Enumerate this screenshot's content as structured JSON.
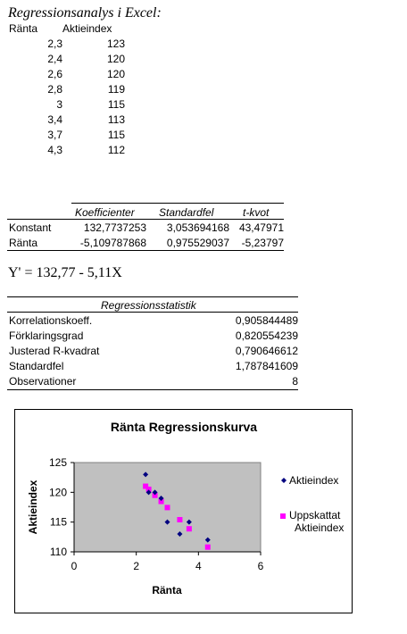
{
  "title": "Regressionsanalys i Excel:",
  "data_table": {
    "headers": [
      "Ränta",
      "Aktieindex"
    ],
    "rows": [
      [
        "2,3",
        "123"
      ],
      [
        "2,4",
        "120"
      ],
      [
        "2,6",
        "120"
      ],
      [
        "2,8",
        "119"
      ],
      [
        "3",
        "115"
      ],
      [
        "3,4",
        "113"
      ],
      [
        "3,7",
        "115"
      ],
      [
        "4,3",
        "112"
      ]
    ]
  },
  "coef_table": {
    "headers": [
      "Koefficienter",
      "Standardfel",
      "t-kvot"
    ],
    "rows": [
      {
        "label": "Konstant",
        "values": [
          "132,7737253",
          "3,053694168",
          "43,47971"
        ]
      },
      {
        "label": "Ränta",
        "values": [
          "-5,109787868",
          "0,975529037",
          "-5,23797"
        ]
      }
    ]
  },
  "equation": "Y' = 132,77 - 5,11X",
  "stats": {
    "header": "Regressionsstatistik",
    "rows": [
      {
        "label": "Korrelationskoeff.",
        "value": "0,905844489"
      },
      {
        "label": "Förklaringsgrad",
        "value": "0,820554239"
      },
      {
        "label": "Justerad R-kvadrat",
        "value": "0,790646612"
      },
      {
        "label": "Standardfel",
        "value": "1,787841609"
      },
      {
        "label": "Observationer",
        "value": "8"
      }
    ]
  },
  "chart_data": {
    "type": "scatter",
    "title": "Ränta Regressionskurva",
    "xlabel": "Ränta",
    "ylabel": "Aktieindex",
    "xlim": [
      0,
      6
    ],
    "ylim": [
      110,
      125
    ],
    "xticks": [
      "0",
      "2",
      "4",
      "6"
    ],
    "yticks": [
      "110",
      "115",
      "120",
      "125"
    ],
    "plot_background": "#c0c0c0",
    "legend_position": "right",
    "series": [
      {
        "name": "Aktieindex",
        "marker": "diamond",
        "color": "#000080",
        "x": [
          2.3,
          2.4,
          2.6,
          2.8,
          3.0,
          3.4,
          3.7,
          4.3
        ],
        "y": [
          123,
          120,
          120,
          119,
          115,
          113,
          115,
          112
        ]
      },
      {
        "name": "Uppskattat Aktieindex",
        "marker": "square",
        "color": "#ff00ff",
        "x": [
          2.3,
          2.4,
          2.6,
          2.8,
          3.0,
          3.4,
          3.7,
          4.3
        ],
        "y": [
          121.02,
          120.51,
          119.49,
          118.47,
          117.44,
          115.4,
          113.87,
          110.8
        ]
      }
    ]
  }
}
